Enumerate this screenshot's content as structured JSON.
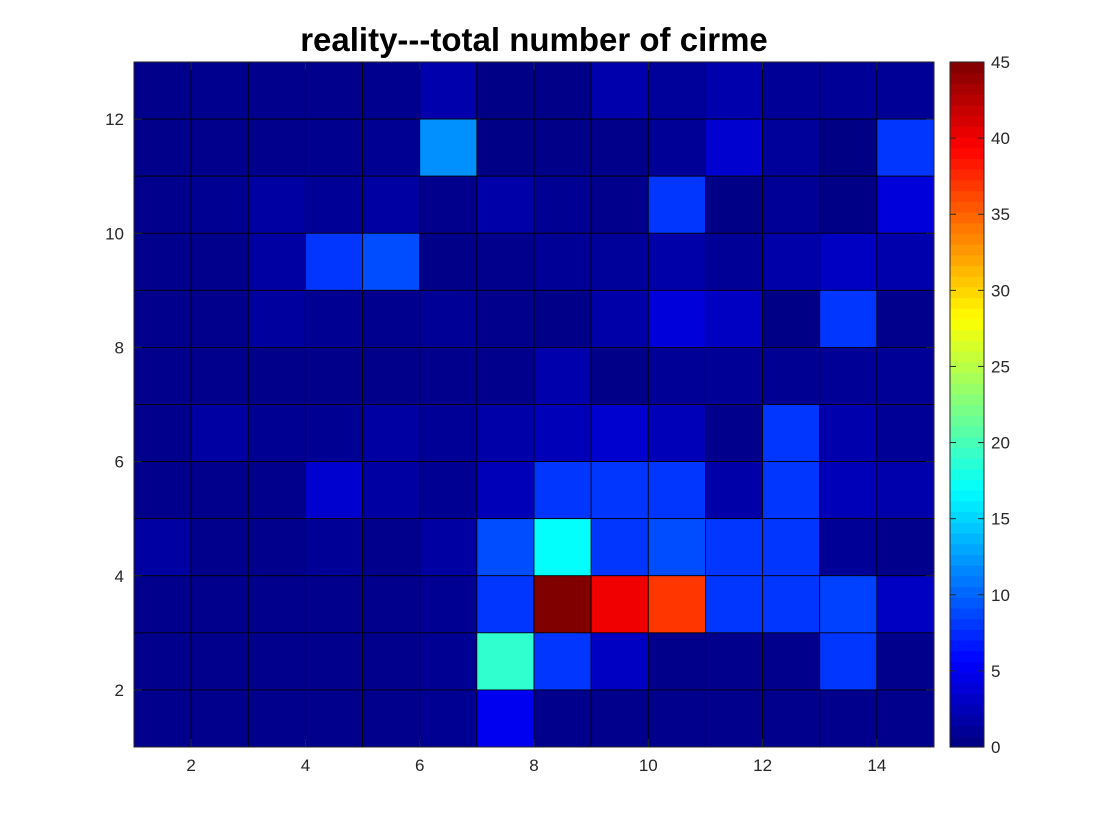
{
  "chart_data": {
    "type": "heatmap",
    "title": "reality---total number of cirme",
    "xlabel": "",
    "ylabel": "",
    "xlim": [
      1,
      15
    ],
    "ylim": [
      1,
      13
    ],
    "x_ticks": [
      2,
      4,
      6,
      8,
      10,
      12,
      14
    ],
    "y_ticks": [
      2,
      4,
      6,
      8,
      10,
      12
    ],
    "grid": "cell-edges",
    "colormap": "jet",
    "color_range": [
      0,
      45
    ],
    "colorbar_ticks": [
      0,
      5,
      10,
      15,
      20,
      25,
      30,
      35,
      40,
      45
    ],
    "colorbar_position": "right",
    "rows_note": "rows listed from top (y 12-13) to bottom (y 1-2); each row has 14 cells for x 1-2 ... 14-15",
    "values": [
      [
        0.5,
        0.7,
        0.6,
        0.6,
        0.7,
        2,
        0.3,
        0.4,
        2,
        1.2,
        2,
        1,
        1,
        1
      ],
      [
        0.5,
        0.6,
        0.6,
        0.7,
        0.8,
        12,
        0.3,
        0.4,
        0.5,
        1,
        3.5,
        1.2,
        0.2,
        8
      ],
      [
        0.6,
        0.8,
        1.5,
        1,
        1.5,
        0.6,
        1.8,
        0.8,
        0.6,
        8,
        0.3,
        1,
        0.3,
        4
      ],
      [
        0.6,
        0.6,
        1.5,
        8,
        9,
        0.4,
        0.6,
        1,
        1.2,
        1.8,
        1,
        1.8,
        3,
        2
      ],
      [
        0.6,
        0.6,
        1.4,
        0.8,
        0.7,
        1,
        0.6,
        0.4,
        1.8,
        4,
        3,
        0.3,
        8,
        0.6
      ],
      [
        0.6,
        0.6,
        0.5,
        0.5,
        0.5,
        0.6,
        0.6,
        2,
        0.4,
        1,
        1,
        0.8,
        1,
        1
      ],
      [
        0.6,
        1.5,
        0.8,
        0.8,
        1.5,
        1,
        1.8,
        2.5,
        3.5,
        2.5,
        0.6,
        8,
        2,
        1
      ],
      [
        0.6,
        0.6,
        0.6,
        3.5,
        1.5,
        0.8,
        2.5,
        8,
        8,
        8,
        1.8,
        8,
        2.5,
        2
      ],
      [
        1.5,
        0.6,
        0.6,
        1,
        0.6,
        1.5,
        9,
        17,
        8,
        9,
        8,
        8,
        1,
        0.6
      ],
      [
        0.6,
        0.6,
        0.6,
        0.6,
        0.6,
        0.8,
        8,
        45,
        40,
        37,
        8,
        8,
        8.5,
        3
      ],
      [
        0.6,
        0.6,
        0.6,
        0.6,
        0.6,
        0.8,
        19,
        8,
        3,
        0.5,
        0.6,
        0.6,
        8,
        0.6
      ],
      [
        0.6,
        0.6,
        0.6,
        0.6,
        0.6,
        0.8,
        5,
        0.6,
        0.6,
        0.6,
        0.6,
        0.6,
        0.6,
        0.6
      ]
    ]
  }
}
